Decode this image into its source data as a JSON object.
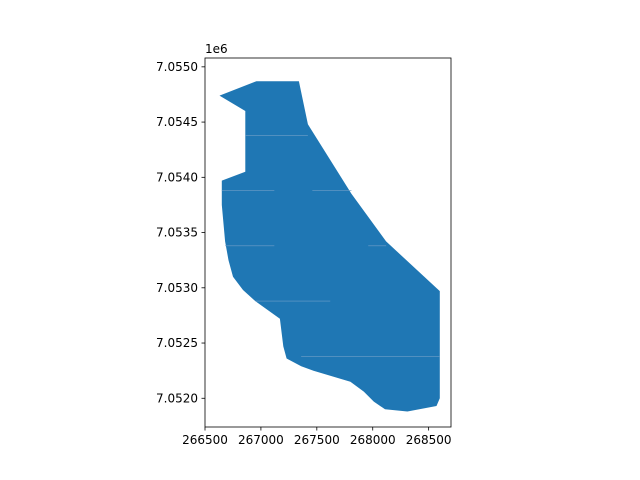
{
  "chart_data": {
    "type": "map",
    "title": "",
    "xlabel": "",
    "ylabel": "",
    "offset_label": "1e6",
    "xlim": [
      266500,
      268700
    ],
    "ylim": [
      7051740,
      7055080
    ],
    "x_ticks": [
      {
        "value": 266500,
        "label": "266500"
      },
      {
        "value": 267000,
        "label": "267000"
      },
      {
        "value": 267500,
        "label": "267500"
      },
      {
        "value": 268000,
        "label": "268000"
      },
      {
        "value": 268500,
        "label": "268500"
      }
    ],
    "y_ticks": [
      {
        "value": 7052000,
        "label": "7.0520"
      },
      {
        "value": 7052500,
        "label": "7.0525"
      },
      {
        "value": 7053000,
        "label": "7.0530"
      },
      {
        "value": 7053500,
        "label": "7.0535"
      },
      {
        "value": 7054000,
        "label": "7.0540"
      },
      {
        "value": 7054500,
        "label": "7.0545"
      },
      {
        "value": 7055000,
        "label": "7.0550"
      }
    ],
    "fill_color": "#1f77b4",
    "seam_color": "#6f9ec8",
    "polygon": [
      [
        266630,
        7054740
      ],
      [
        266960,
        7054870
      ],
      [
        267340,
        7054870
      ],
      [
        267420,
        7054480
      ],
      [
        267810,
        7053850
      ],
      [
        268120,
        7053420
      ],
      [
        268600,
        7052970
      ],
      [
        268600,
        7052000
      ],
      [
        268570,
        7051930
      ],
      [
        268310,
        7051880
      ],
      [
        268110,
        7051900
      ],
      [
        268010,
        7051970
      ],
      [
        267920,
        7052060
      ],
      [
        267800,
        7052150
      ],
      [
        267470,
        7052250
      ],
      [
        267360,
        7052290
      ],
      [
        267230,
        7052360
      ],
      [
        267200,
        7052470
      ],
      [
        267170,
        7052720
      ],
      [
        266950,
        7052880
      ],
      [
        266840,
        7052980
      ],
      [
        266750,
        7053100
      ],
      [
        266710,
        7053250
      ],
      [
        266680,
        7053420
      ],
      [
        266650,
        7053750
      ],
      [
        266650,
        7053970
      ],
      [
        266860,
        7054050
      ],
      [
        266860,
        7054600
      ]
    ],
    "seams": [
      [
        [
          266860,
          7054380
        ],
        [
          267420,
          7054380
        ]
      ],
      [
        [
          266650,
          7053880
        ],
        [
          267120,
          7053880
        ]
      ],
      [
        [
          267460,
          7053880
        ],
        [
          267810,
          7053880
        ]
      ],
      [
        [
          266680,
          7053380
        ],
        [
          267120,
          7053380
        ]
      ],
      [
        [
          267960,
          7053380
        ],
        [
          268120,
          7053380
        ]
      ],
      [
        [
          266950,
          7052880
        ],
        [
          267620,
          7052880
        ]
      ],
      [
        [
          267360,
          7052380
        ],
        [
          268600,
          7052380
        ]
      ]
    ]
  }
}
